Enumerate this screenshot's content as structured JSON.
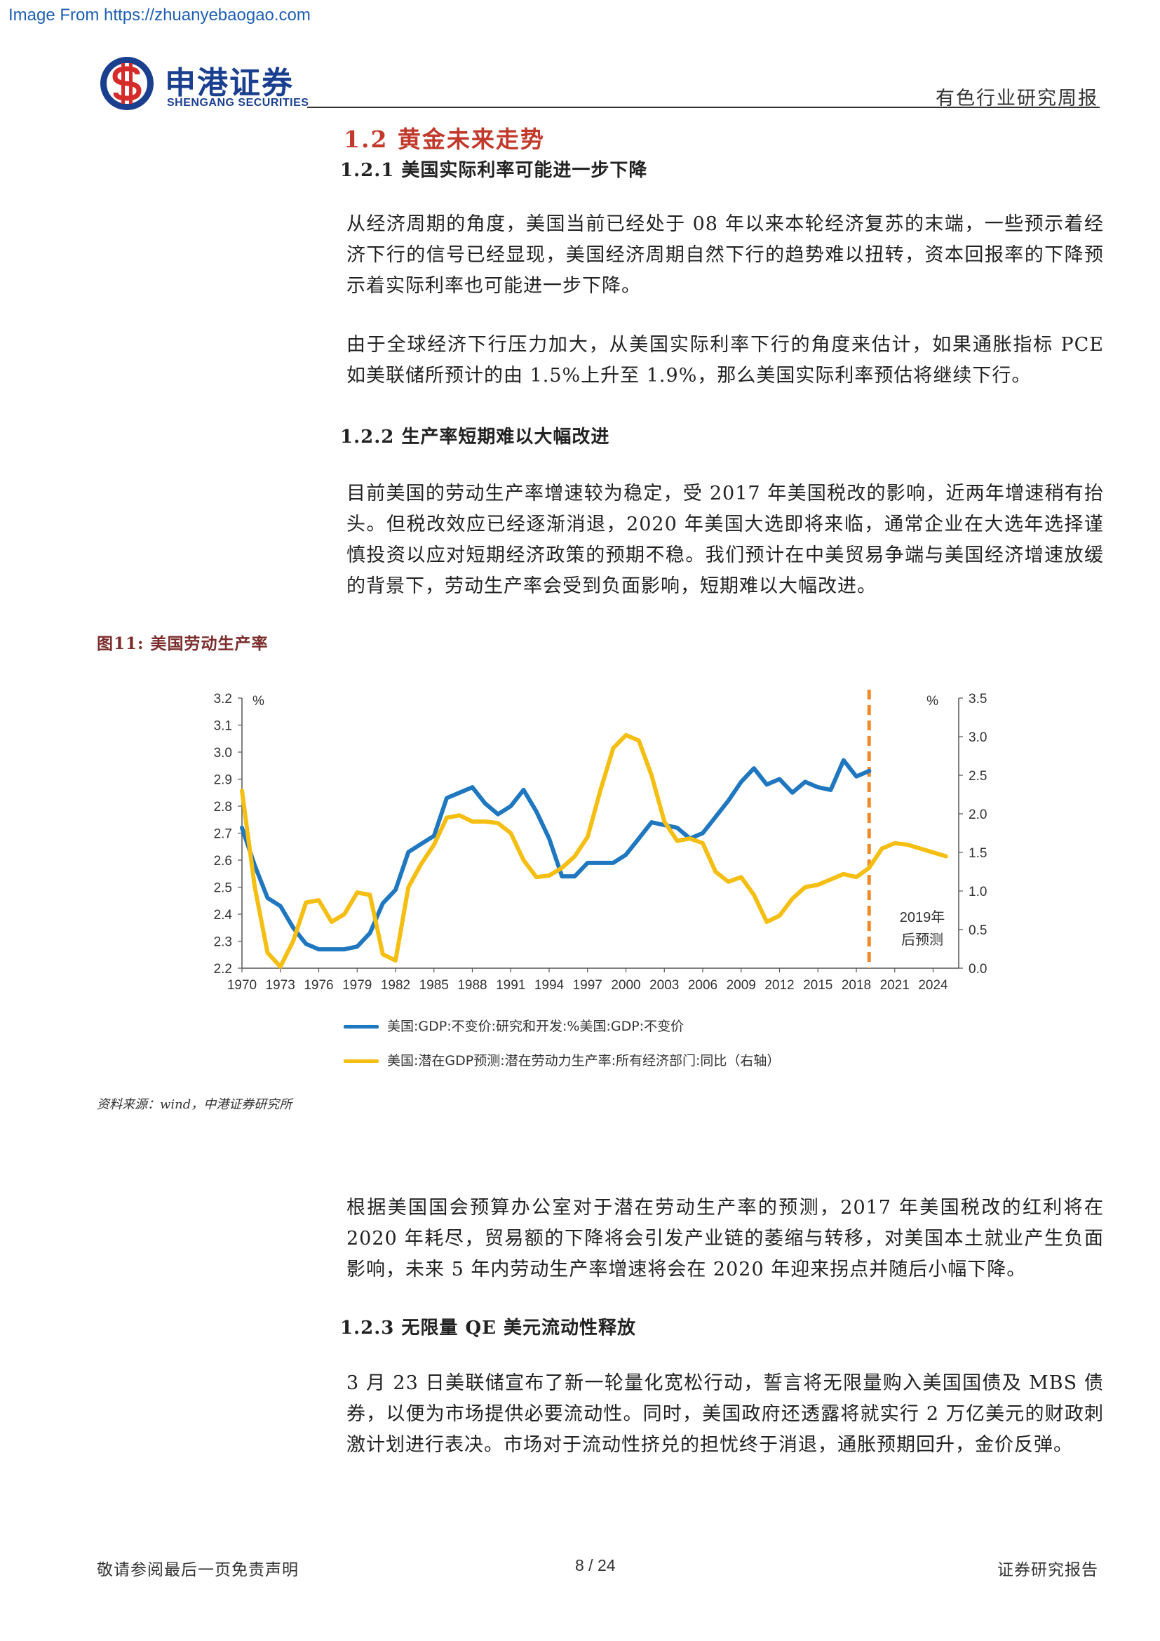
{
  "watermark": "Image From https://zhuanyebaogao.com",
  "header": {
    "brand_cn": "申港证券",
    "brand_en": "SHENGANG SECURITIES",
    "report_type": "有色行业研究周报",
    "logo_icon": "shengang-logo-icon",
    "brand_color": "#1b3f8f",
    "logo_accent": "#d62b2b"
  },
  "section": {
    "title": "1.2  黄金未来走势",
    "sub1": {
      "title": "1.2.1 美国实际利率可能进一步下降",
      "paras": [
        "从经济周期的角度，美国当前已经处于 08 年以来本轮经济复苏的末端，一些预示着经济下行的信号已经显现，美国经济周期自然下行的趋势难以扭转，资本回报率的下降预示着实际利率也可能进一步下降。",
        "由于全球经济下行压力加大，从美国实际利率下行的角度来估计，如果通胀指标 PCE 如美联储所预计的由 1.5%上升至 1.9%，那么美国实际利率预估将继续下行。"
      ]
    },
    "sub2": {
      "title": "1.2.2 生产率短期难以大幅改进",
      "paras": [
        "目前美国的劳动生产率增速较为稳定，受 2017 年美国税改的影响，近两年增速稍有抬头。但税改效应已经逐渐消退，2020 年美国大选即将来临，通常企业在大选年选择谨慎投资以应对短期经济政策的预期不稳。我们预计在中美贸易争端与美国经济增速放缓的背景下，劳动生产率会受到负面影响，短期难以大幅改进。"
      ]
    },
    "after_fig_paras": [
      "根据美国国会预算办公室对于潜在劳动生产率的预测，2017 年美国税改的红利将在 2020 年耗尽，贸易额的下降将会引发产业链的萎缩与转移，对美国本土就业产生负面影响，未来 5 年内劳动生产率增速将会在 2020 年迎来拐点并随后小幅下降。"
    ],
    "sub3": {
      "title": "1.2.3 无限量 QE  美元流动性释放",
      "paras": [
        "3 月 23 日美联储宣布了新一轮量化宽松行动，誓言将无限量购入美国国债及 MBS 债券，以便为市场提供必要流动性。同时，美国政府还透露将就实行 2 万亿美元的财政刺激计划进行表决。市场对于流动性挤兑的担忧终于消退，通胀预期回升，金价反弹。"
      ]
    }
  },
  "figure": {
    "caption": "图11:  美国劳动生产率",
    "source": "资料来源：wind，中港证券研究所",
    "forecast_label_1": "2019年",
    "forecast_label_2": "后预测",
    "left_unit": "%",
    "right_unit": "%"
  },
  "chart_data": {
    "type": "line",
    "x_ticks": [
      "1970",
      "1973",
      "1976",
      "1979",
      "1982",
      "1985",
      "1988",
      "1991",
      "1994",
      "1997",
      "2000",
      "2003",
      "2006",
      "2009",
      "2012",
      "2015",
      "2018",
      "2021",
      "2024"
    ],
    "left_ticks": [
      "2.2",
      "2.3",
      "2.4",
      "2.5",
      "2.6",
      "2.7",
      "2.8",
      "2.9",
      "3.0",
      "3.1",
      "3.2"
    ],
    "right_ticks": [
      "0.0",
      "0.5",
      "1.0",
      "1.5",
      "2.0",
      "2.5",
      "3.0",
      "3.5"
    ],
    "left_ylim": [
      2.2,
      3.2
    ],
    "right_ylim": [
      0.0,
      3.5
    ],
    "xlim": [
      1970,
      2026
    ],
    "forecast_from": 2019,
    "series": [
      {
        "name": "美国:GDP:不变价:研究和开发:%美国:GDP:不变价",
        "axis": "left",
        "color": "#1f77c0",
        "x": [
          1970,
          1971,
          1972,
          1973,
          1974,
          1975,
          1976,
          1977,
          1978,
          1979,
          1980,
          1981,
          1982,
          1983,
          1984,
          1985,
          1986,
          1987,
          1988,
          1989,
          1990,
          1991,
          1992,
          1993,
          1994,
          1995,
          1996,
          1997,
          1998,
          1999,
          2000,
          2001,
          2002,
          2003,
          2004,
          2005,
          2006,
          2007,
          2008,
          2009,
          2010,
          2011,
          2012,
          2013,
          2014,
          2015,
          2016,
          2017,
          2018,
          2019
        ],
        "values": [
          2.72,
          2.58,
          2.46,
          2.43,
          2.35,
          2.29,
          2.27,
          2.27,
          2.27,
          2.28,
          2.33,
          2.44,
          2.49,
          2.63,
          2.66,
          2.69,
          2.83,
          2.85,
          2.87,
          2.81,
          2.77,
          2.8,
          2.86,
          2.78,
          2.68,
          2.54,
          2.54,
          2.59,
          2.59,
          2.59,
          2.62,
          2.68,
          2.74,
          2.73,
          2.72,
          2.68,
          2.7,
          2.76,
          2.82,
          2.89,
          2.94,
          2.88,
          2.9,
          2.85,
          2.89,
          2.87,
          2.86,
          2.97,
          2.91,
          2.93
        ]
      },
      {
        "name": "美国:潜在GDP预测:潜在劳动力生产率:所有经济部门:同比（右轴）",
        "axis": "right",
        "color": "#f5be12",
        "x": [
          1970,
          1971,
          1972,
          1973,
          1974,
          1975,
          1976,
          1977,
          1978,
          1979,
          1980,
          1981,
          1982,
          1983,
          1984,
          1985,
          1986,
          1987,
          1988,
          1989,
          1990,
          1991,
          1992,
          1993,
          1994,
          1995,
          1996,
          1997,
          1998,
          1999,
          2000,
          2001,
          2002,
          2003,
          2004,
          2005,
          2006,
          2007,
          2008,
          2009,
          2010,
          2011,
          2012,
          2013,
          2014,
          2015,
          2016,
          2017,
          2018,
          2019,
          2020,
          2021,
          2022,
          2023,
          2024,
          2025
        ],
        "values": [
          2.3,
          1.05,
          0.2,
          0.02,
          0.35,
          0.85,
          0.88,
          0.6,
          0.7,
          0.98,
          0.95,
          0.18,
          0.1,
          1.05,
          1.35,
          1.6,
          1.95,
          1.98,
          1.9,
          1.9,
          1.88,
          1.75,
          1.4,
          1.18,
          1.2,
          1.3,
          1.45,
          1.7,
          2.3,
          2.85,
          3.02,
          2.95,
          2.5,
          1.9,
          1.65,
          1.68,
          1.62,
          1.25,
          1.12,
          1.18,
          0.95,
          0.6,
          0.68,
          0.9,
          1.05,
          1.08,
          1.15,
          1.22,
          1.18,
          1.3,
          1.55,
          1.62,
          1.6,
          1.55,
          1.5,
          1.45
        ]
      }
    ]
  },
  "footer": {
    "left": "敬请参阅最后一页免责声明",
    "center": "8 / 24",
    "right": "证券研究报告"
  }
}
